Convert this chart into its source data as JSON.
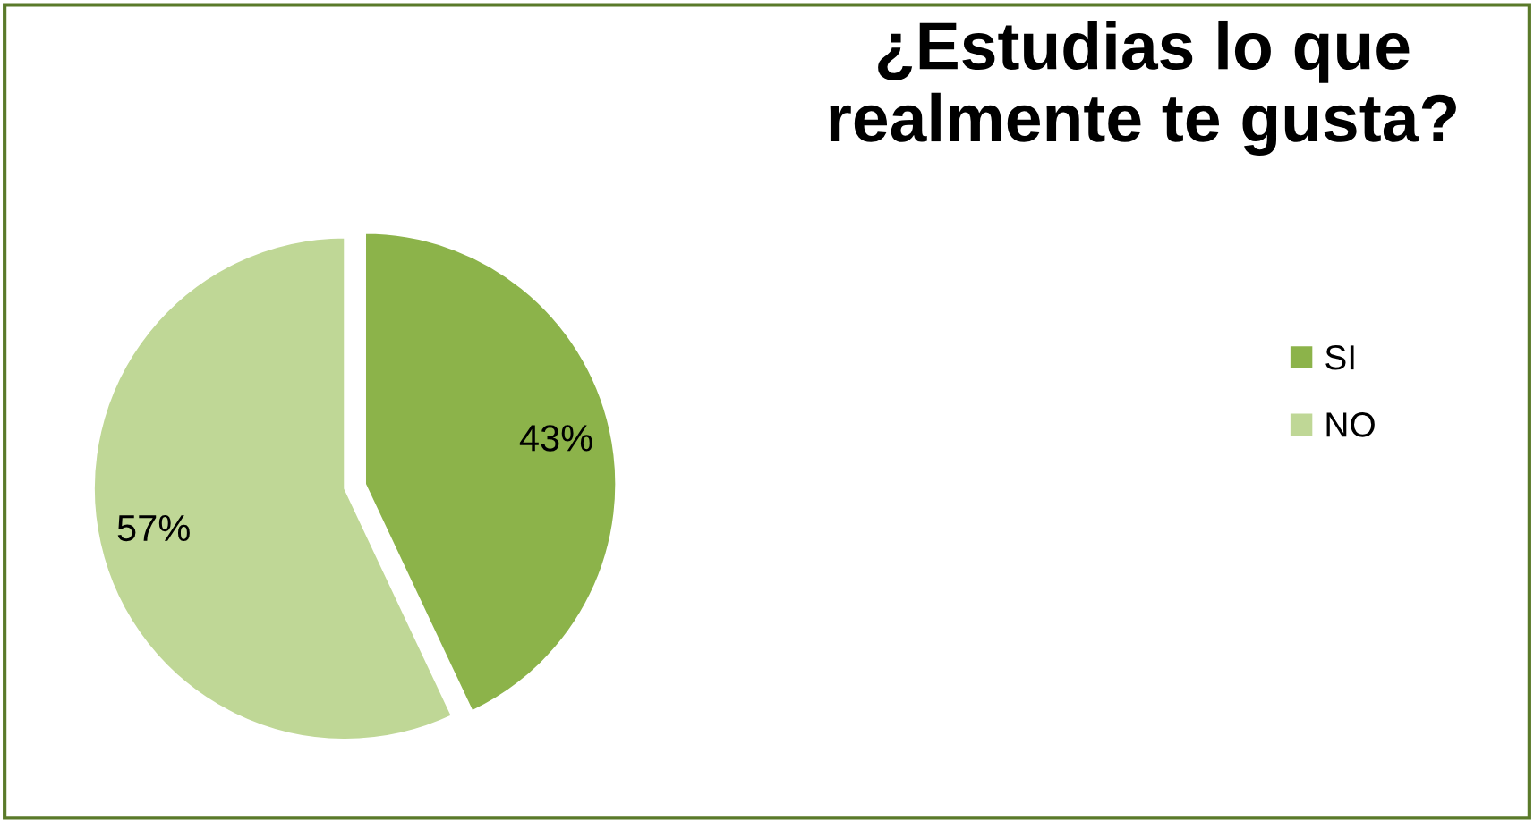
{
  "chart_data": {
    "type": "pie",
    "title": "¿Estudias lo que realmente te gusta?",
    "categories": [
      "SI",
      "NO"
    ],
    "values": [
      43,
      57
    ],
    "colors": [
      "#8cb34a",
      "#bfd796"
    ],
    "value_labels": [
      "43%",
      "57%"
    ],
    "legend": "right"
  }
}
